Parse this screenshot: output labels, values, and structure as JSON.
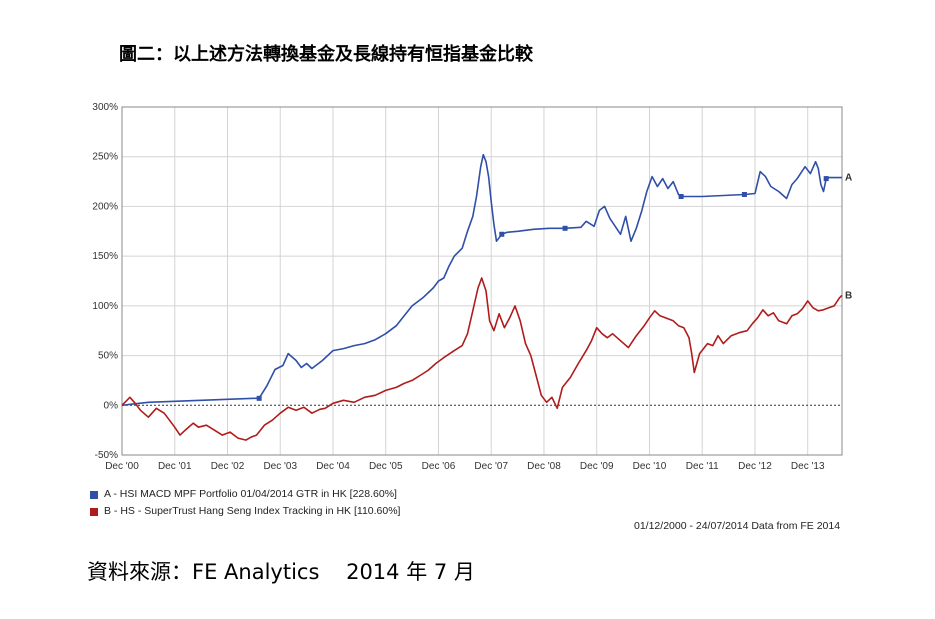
{
  "page_title": "圖二：以上述方法轉換基金及長線持有恒指基金比較",
  "source_text": "資料來源：FE Analytics    2014 年 7 月",
  "date_range_note": "01/12/2000 - 24/07/2014 Data from FE 2014",
  "colors": {
    "series_a": "#2f4fa8",
    "series_b": "#b01c1c",
    "grid": "#d4d4d4",
    "zero_line": "#333333",
    "axis": "#888888"
  },
  "chart_data": {
    "type": "line",
    "title": "",
    "xlabel": "",
    "ylabel": "",
    "ylim": [
      -50,
      300
    ],
    "xlim": [
      0,
      13.65
    ],
    "y_ticks": [
      {
        "value": 300,
        "label": "300%"
      },
      {
        "value": 250,
        "label": "250%"
      },
      {
        "value": 200,
        "label": "200%"
      },
      {
        "value": 150,
        "label": "150%"
      },
      {
        "value": 100,
        "label": "100%"
      },
      {
        "value": 50,
        "label": "50%"
      },
      {
        "value": 0,
        "label": "0%"
      },
      {
        "value": -50,
        "label": "-50%"
      }
    ],
    "x_ticks": [
      {
        "value": 0,
        "label": "Dec '00"
      },
      {
        "value": 1,
        "label": "Dec '01"
      },
      {
        "value": 2,
        "label": "Dec '02"
      },
      {
        "value": 3,
        "label": "Dec '03"
      },
      {
        "value": 4,
        "label": "Dec '04"
      },
      {
        "value": 5,
        "label": "Dec '05"
      },
      {
        "value": 6,
        "label": "Dec '06"
      },
      {
        "value": 7,
        "label": "Dec '07"
      },
      {
        "value": 8,
        "label": "Dec '08"
      },
      {
        "value": 9,
        "label": "Dec '09"
      },
      {
        "value": 10,
        "label": "Dec '10"
      },
      {
        "value": 11,
        "label": "Dec '11"
      },
      {
        "value": 12,
        "label": "Dec '12"
      },
      {
        "value": 13,
        "label": "Dec '13"
      }
    ],
    "series": [
      {
        "name": "A - HSI MACD MPF Portfolio 01/04/2014 GTR in HK [228.60%]",
        "end_label": "A",
        "final_value": 228.6,
        "points": [
          [
            0,
            0
          ],
          [
            0.5,
            3
          ],
          [
            1,
            4
          ],
          [
            1.5,
            5
          ],
          [
            2,
            6
          ],
          [
            2.5,
            7
          ],
          [
            2.6,
            7
          ],
          [
            2.75,
            20
          ],
          [
            2.9,
            36
          ],
          [
            3.05,
            40
          ],
          [
            3.15,
            52
          ],
          [
            3.3,
            45
          ],
          [
            3.4,
            38
          ],
          [
            3.5,
            42
          ],
          [
            3.6,
            37
          ],
          [
            3.8,
            45
          ],
          [
            4.0,
            55
          ],
          [
            4.2,
            57
          ],
          [
            4.4,
            60
          ],
          [
            4.6,
            62
          ],
          [
            4.8,
            66
          ],
          [
            5.0,
            72
          ],
          [
            5.2,
            80
          ],
          [
            5.35,
            90
          ],
          [
            5.5,
            100
          ],
          [
            5.7,
            108
          ],
          [
            5.9,
            118
          ],
          [
            6.0,
            125
          ],
          [
            6.1,
            128
          ],
          [
            6.2,
            140
          ],
          [
            6.3,
            150
          ],
          [
            6.45,
            158
          ],
          [
            6.55,
            175
          ],
          [
            6.65,
            190
          ],
          [
            6.72,
            210
          ],
          [
            6.8,
            240
          ],
          [
            6.85,
            252
          ],
          [
            6.9,
            245
          ],
          [
            6.95,
            230
          ],
          [
            7.0,
            205
          ],
          [
            7.05,
            182
          ],
          [
            7.1,
            165
          ],
          [
            7.2,
            172
          ],
          [
            7.3,
            174
          ],
          [
            7.5,
            175
          ],
          [
            7.8,
            177
          ],
          [
            8.1,
            178
          ],
          [
            8.4,
            178
          ],
          [
            8.7,
            179
          ],
          [
            8.8,
            185
          ],
          [
            8.95,
            180
          ],
          [
            9.05,
            196
          ],
          [
            9.15,
            200
          ],
          [
            9.25,
            188
          ],
          [
            9.35,
            180
          ],
          [
            9.45,
            172
          ],
          [
            9.55,
            190
          ],
          [
            9.65,
            165
          ],
          [
            9.75,
            178
          ],
          [
            9.85,
            195
          ],
          [
            9.95,
            215
          ],
          [
            10.05,
            230
          ],
          [
            10.15,
            220
          ],
          [
            10.25,
            228
          ],
          [
            10.35,
            218
          ],
          [
            10.45,
            225
          ],
          [
            10.55,
            212
          ],
          [
            10.6,
            210
          ],
          [
            10.8,
            210
          ],
          [
            11.0,
            210
          ],
          [
            11.4,
            211
          ],
          [
            11.8,
            212
          ],
          [
            12.0,
            213
          ],
          [
            12.1,
            235
          ],
          [
            12.2,
            230
          ],
          [
            12.3,
            220
          ],
          [
            12.45,
            215
          ],
          [
            12.6,
            208
          ],
          [
            12.7,
            222
          ],
          [
            12.8,
            228
          ],
          [
            12.95,
            240
          ],
          [
            13.05,
            233
          ],
          [
            13.15,
            245
          ],
          [
            13.2,
            238
          ],
          [
            13.25,
            222
          ],
          [
            13.3,
            215
          ],
          [
            13.35,
            228
          ],
          [
            13.4,
            229
          ],
          [
            13.65,
            229
          ]
        ]
      },
      {
        "name": "B - HS - SuperTrust Hang Seng Index Tracking in HK [110.60%]",
        "end_label": "B",
        "final_value": 110.6,
        "points": [
          [
            0,
            0
          ],
          [
            0.15,
            8
          ],
          [
            0.25,
            2
          ],
          [
            0.35,
            -5
          ],
          [
            0.5,
            -12
          ],
          [
            0.65,
            -3
          ],
          [
            0.8,
            -8
          ],
          [
            0.9,
            -15
          ],
          [
            1.0,
            -22
          ],
          [
            1.1,
            -30
          ],
          [
            1.2,
            -25
          ],
          [
            1.35,
            -18
          ],
          [
            1.45,
            -22
          ],
          [
            1.6,
            -20
          ],
          [
            1.75,
            -25
          ],
          [
            1.9,
            -30
          ],
          [
            2.05,
            -27
          ],
          [
            2.2,
            -33
          ],
          [
            2.35,
            -35
          ],
          [
            2.45,
            -32
          ],
          [
            2.55,
            -30
          ],
          [
            2.7,
            -20
          ],
          [
            2.85,
            -15
          ],
          [
            3.0,
            -8
          ],
          [
            3.15,
            -2
          ],
          [
            3.3,
            -5
          ],
          [
            3.45,
            -2
          ],
          [
            3.6,
            -8
          ],
          [
            3.75,
            -4
          ],
          [
            3.85,
            -3
          ],
          [
            4.0,
            2
          ],
          [
            4.2,
            5
          ],
          [
            4.4,
            3
          ],
          [
            4.6,
            8
          ],
          [
            4.8,
            10
          ],
          [
            5.0,
            15
          ],
          [
            5.2,
            18
          ],
          [
            5.35,
            22
          ],
          [
            5.5,
            25
          ],
          [
            5.65,
            30
          ],
          [
            5.8,
            35
          ],
          [
            5.95,
            42
          ],
          [
            6.1,
            48
          ],
          [
            6.3,
            55
          ],
          [
            6.45,
            60
          ],
          [
            6.55,
            72
          ],
          [
            6.65,
            95
          ],
          [
            6.75,
            118
          ],
          [
            6.82,
            128
          ],
          [
            6.9,
            115
          ],
          [
            6.97,
            85
          ],
          [
            7.05,
            75
          ],
          [
            7.15,
            92
          ],
          [
            7.25,
            78
          ],
          [
            7.35,
            88
          ],
          [
            7.45,
            100
          ],
          [
            7.55,
            85
          ],
          [
            7.65,
            62
          ],
          [
            7.75,
            50
          ],
          [
            7.85,
            30
          ],
          [
            7.95,
            10
          ],
          [
            8.05,
            3
          ],
          [
            8.15,
            8
          ],
          [
            8.25,
            -3
          ],
          [
            8.35,
            18
          ],
          [
            8.5,
            28
          ],
          [
            8.65,
            42
          ],
          [
            8.8,
            55
          ],
          [
            8.9,
            65
          ],
          [
            9.0,
            78
          ],
          [
            9.1,
            72
          ],
          [
            9.2,
            68
          ],
          [
            9.3,
            72
          ],
          [
            9.45,
            65
          ],
          [
            9.6,
            58
          ],
          [
            9.75,
            70
          ],
          [
            9.9,
            80
          ],
          [
            10.0,
            88
          ],
          [
            10.1,
            95
          ],
          [
            10.2,
            90
          ],
          [
            10.3,
            88
          ],
          [
            10.45,
            85
          ],
          [
            10.55,
            80
          ],
          [
            10.65,
            78
          ],
          [
            10.75,
            68
          ],
          [
            10.8,
            52
          ],
          [
            10.85,
            33
          ],
          [
            10.95,
            52
          ],
          [
            11.1,
            62
          ],
          [
            11.2,
            60
          ],
          [
            11.3,
            70
          ],
          [
            11.4,
            62
          ],
          [
            11.55,
            70
          ],
          [
            11.7,
            73
          ],
          [
            11.85,
            75
          ],
          [
            11.95,
            82
          ],
          [
            12.05,
            88
          ],
          [
            12.15,
            96
          ],
          [
            12.25,
            90
          ],
          [
            12.35,
            93
          ],
          [
            12.45,
            85
          ],
          [
            12.6,
            82
          ],
          [
            12.7,
            90
          ],
          [
            12.8,
            92
          ],
          [
            12.9,
            97
          ],
          [
            13.0,
            105
          ],
          [
            13.1,
            98
          ],
          [
            13.2,
            95
          ],
          [
            13.3,
            96
          ],
          [
            13.4,
            98
          ],
          [
            13.5,
            100
          ],
          [
            13.6,
            108
          ],
          [
            13.65,
            110.6
          ]
        ]
      }
    ]
  }
}
